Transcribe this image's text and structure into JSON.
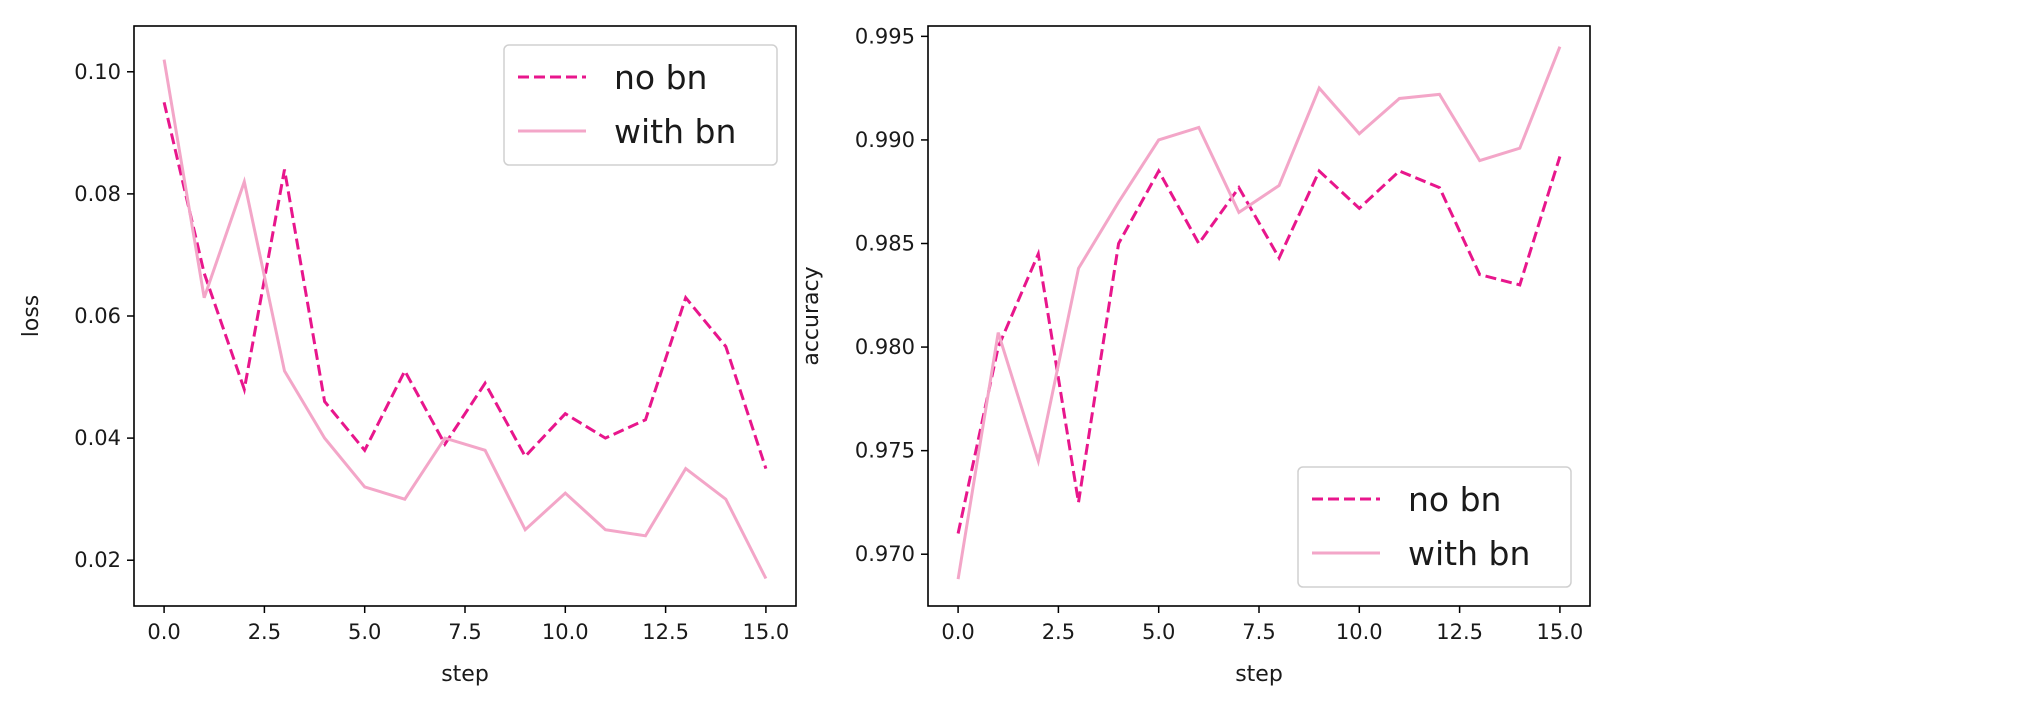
{
  "colors": {
    "no_bn": "#e8168c",
    "with_bn": "#f3a6c8",
    "axes": "#000000",
    "legend_border": "#d0d0d0"
  },
  "chart_data": [
    {
      "type": "line",
      "title": "",
      "xlabel": "step",
      "ylabel": "loss",
      "xlim": [
        -0.75,
        15.75
      ],
      "ylim": [
        0.0125,
        0.1075
      ],
      "xticks": [
        0.0,
        2.5,
        5.0,
        7.5,
        10.0,
        12.5,
        15.0
      ],
      "xtick_labels": [
        "0.0",
        "2.5",
        "5.0",
        "7.5",
        "10.0",
        "12.5",
        "15.0"
      ],
      "yticks": [
        0.02,
        0.04,
        0.06,
        0.08,
        0.1
      ],
      "ytick_labels": [
        "0.02",
        "0.04",
        "0.06",
        "0.08",
        "0.10"
      ],
      "grid": false,
      "legend": "upper right",
      "x": [
        0,
        1,
        2,
        3,
        4,
        5,
        6,
        7,
        8,
        9,
        10,
        11,
        12,
        13,
        14,
        15
      ],
      "series": [
        {
          "name": "no bn",
          "style": "dashed",
          "color": "#e8168c",
          "values": [
            0.095,
            0.067,
            0.048,
            0.084,
            0.046,
            0.038,
            0.051,
            0.039,
            0.049,
            0.037,
            0.044,
            0.04,
            0.043,
            0.063,
            0.055,
            0.035
          ]
        },
        {
          "name": "with bn",
          "style": "solid",
          "color": "#f3a6c8",
          "values": [
            0.102,
            0.063,
            0.082,
            0.051,
            0.04,
            0.032,
            0.03,
            0.04,
            0.038,
            0.025,
            0.031,
            0.025,
            0.024,
            0.035,
            0.03,
            0.017
          ]
        }
      ]
    },
    {
      "type": "line",
      "title": "",
      "xlabel": "step",
      "ylabel": "accuracy",
      "xlim": [
        -0.75,
        15.75
      ],
      "ylim": [
        0.9675,
        0.9955
      ],
      "xticks": [
        0.0,
        2.5,
        5.0,
        7.5,
        10.0,
        12.5,
        15.0
      ],
      "xtick_labels": [
        "0.0",
        "2.5",
        "5.0",
        "7.5",
        "10.0",
        "12.5",
        "15.0"
      ],
      "yticks": [
        0.97,
        0.975,
        0.98,
        0.985,
        0.99,
        0.995
      ],
      "ytick_labels": [
        "0.970",
        "0.975",
        "0.980",
        "0.985",
        "0.990",
        "0.995"
      ],
      "grid": false,
      "legend": "lower right",
      "x": [
        0,
        1,
        2,
        3,
        4,
        5,
        6,
        7,
        8,
        9,
        10,
        11,
        12,
        13,
        14,
        15
      ],
      "series": [
        {
          "name": "no bn",
          "style": "dashed",
          "color": "#e8168c",
          "values": [
            0.971,
            0.98,
            0.9845,
            0.9725,
            0.985,
            0.9885,
            0.985,
            0.9877,
            0.9843,
            0.9885,
            0.9867,
            0.9885,
            0.9877,
            0.9835,
            0.983,
            0.9892
          ]
        },
        {
          "name": "with bn",
          "style": "solid",
          "color": "#f3a6c8",
          "values": [
            0.9688,
            0.9807,
            0.9745,
            0.9838,
            0.987,
            0.99,
            0.9906,
            0.9865,
            0.9878,
            0.9925,
            0.9903,
            0.992,
            0.9922,
            0.989,
            0.9896,
            0.9945
          ]
        }
      ]
    }
  ]
}
